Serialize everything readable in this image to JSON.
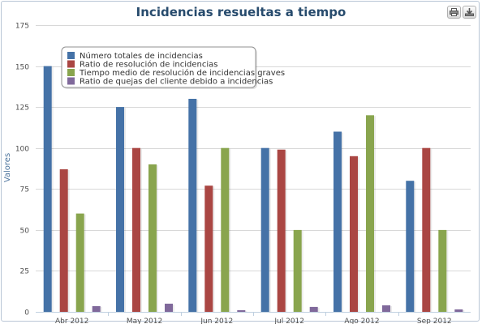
{
  "chart_data": {
    "type": "bar",
    "title": "Incidencias resueltas a tiempo",
    "ylabel": "Valores",
    "xlabel": "",
    "ylim": [
      0,
      175
    ],
    "yticks": [
      0,
      25,
      50,
      75,
      100,
      125,
      150,
      175
    ],
    "grid": true,
    "legend_position": "top-left",
    "categories": [
      "Abr 2012",
      "May 2012",
      "Jun 2012",
      "Jul 2012",
      "Ago 2012",
      "Sep 2012"
    ],
    "series": [
      {
        "name": "Número totales de incidencias",
        "color": "#4572a7",
        "values": [
          150,
          125,
          130,
          100,
          110,
          80
        ]
      },
      {
        "name": "Ratio de resolución de incidencias",
        "color": "#aa4643",
        "values": [
          87,
          100,
          77,
          99,
          95,
          100
        ]
      },
      {
        "name": "Tiempo medio de resolución de incidencias graves",
        "color": "#89a54e",
        "values": [
          60,
          90,
          100,
          50,
          120,
          50
        ]
      },
      {
        "name": "Ratio de quejas del cliente debido a incidencias",
        "color": "#80699b",
        "values": [
          3.5,
          5,
          1,
          3,
          4,
          1.5
        ]
      }
    ]
  },
  "toolbar": {
    "print_icon": "printer-icon",
    "export_icon": "download-icon"
  }
}
